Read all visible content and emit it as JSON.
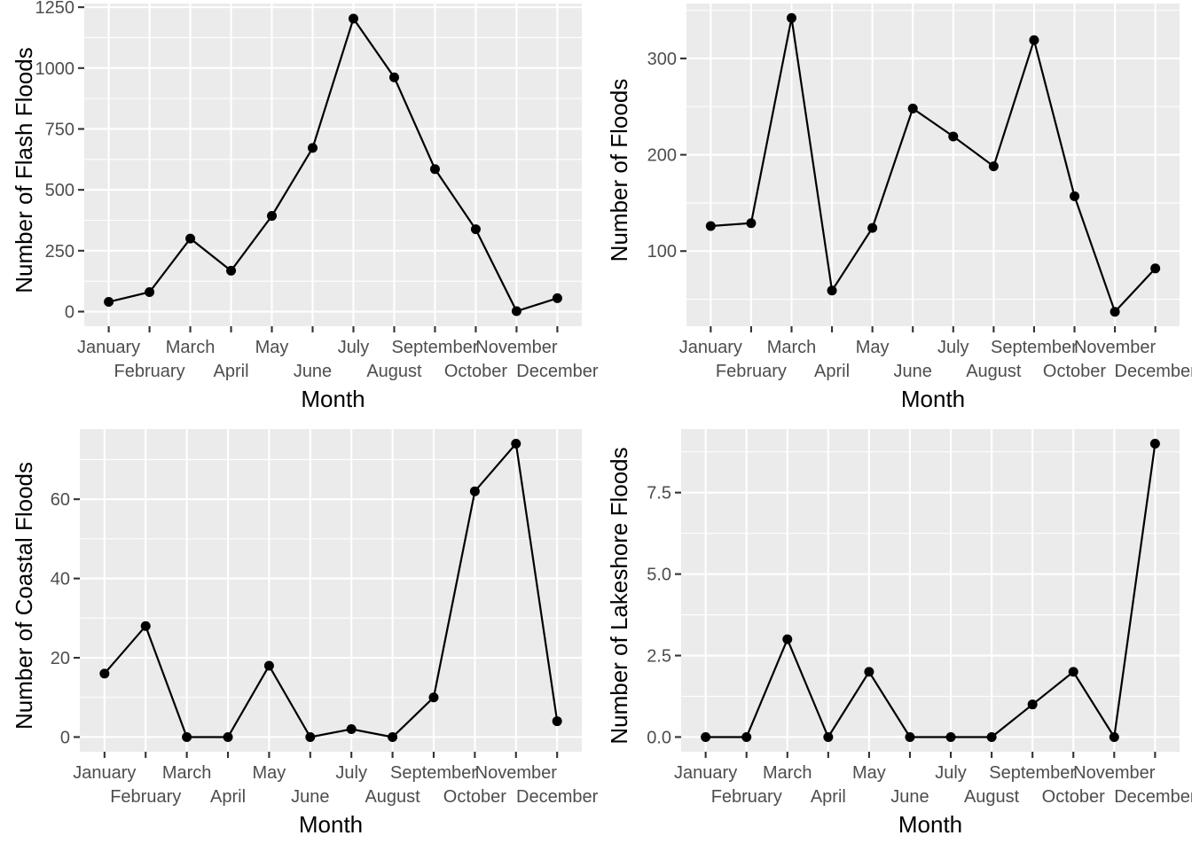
{
  "chart_data": [
    {
      "type": "line",
      "xlabel": "Month",
      "ylabel": "Number of Flash Floods",
      "categories": [
        "January",
        "February",
        "March",
        "April",
        "May",
        "June",
        "July",
        "August",
        "September",
        "October",
        "November",
        "December"
      ],
      "values": [
        40,
        80,
        300,
        168,
        393,
        672,
        1203,
        962,
        585,
        338,
        2,
        55
      ],
      "yticks": [
        0,
        250,
        500,
        750,
        1000,
        1250
      ],
      "ytick_labels": [
        "0",
        "250",
        "500",
        "750",
        "1000",
        "1250"
      ],
      "ylim": [
        -60,
        1265
      ],
      "grid": true,
      "color": "#000000"
    },
    {
      "type": "line",
      "xlabel": "Month",
      "ylabel": "Number of Floods",
      "categories": [
        "January",
        "February",
        "March",
        "April",
        "May",
        "June",
        "July",
        "August",
        "September",
        "October",
        "November",
        "December"
      ],
      "values": [
        126,
        129,
        342,
        59,
        124,
        248,
        219,
        188,
        319,
        157,
        37,
        82
      ],
      "yticks": [
        100,
        200,
        300
      ],
      "ytick_labels": [
        "100",
        "200",
        "300"
      ],
      "ylim": [
        22,
        357
      ],
      "grid": true,
      "color": "#000000"
    },
    {
      "type": "line",
      "xlabel": "Month",
      "ylabel": "Number of Coastal Floods",
      "categories": [
        "January",
        "February",
        "March",
        "April",
        "May",
        "June",
        "July",
        "August",
        "September",
        "October",
        "November",
        "December"
      ],
      "values": [
        16,
        28,
        0,
        0,
        18,
        0,
        2,
        0,
        10,
        62,
        74,
        4
      ],
      "yticks": [
        0,
        20,
        40,
        60
      ],
      "ytick_labels": [
        "0",
        "20",
        "40",
        "60"
      ],
      "ylim": [
        -3.7,
        77.7
      ],
      "grid": true,
      "color": "#000000"
    },
    {
      "type": "line",
      "xlabel": "Month",
      "ylabel": "Number of Lakeshore Floods",
      "categories": [
        "January",
        "February",
        "March",
        "April",
        "May",
        "June",
        "July",
        "August",
        "September",
        "October",
        "November",
        "December"
      ],
      "values": [
        0,
        0,
        3,
        0,
        2,
        0,
        0,
        0,
        1,
        2,
        0,
        9
      ],
      "yticks": [
        0,
        2.5,
        5,
        7.5
      ],
      "ytick_labels": [
        "0.0",
        "2.5",
        "5.0",
        "7.5"
      ],
      "ylim": [
        -0.45,
        9.45
      ],
      "grid": true,
      "color": "#000000"
    }
  ]
}
